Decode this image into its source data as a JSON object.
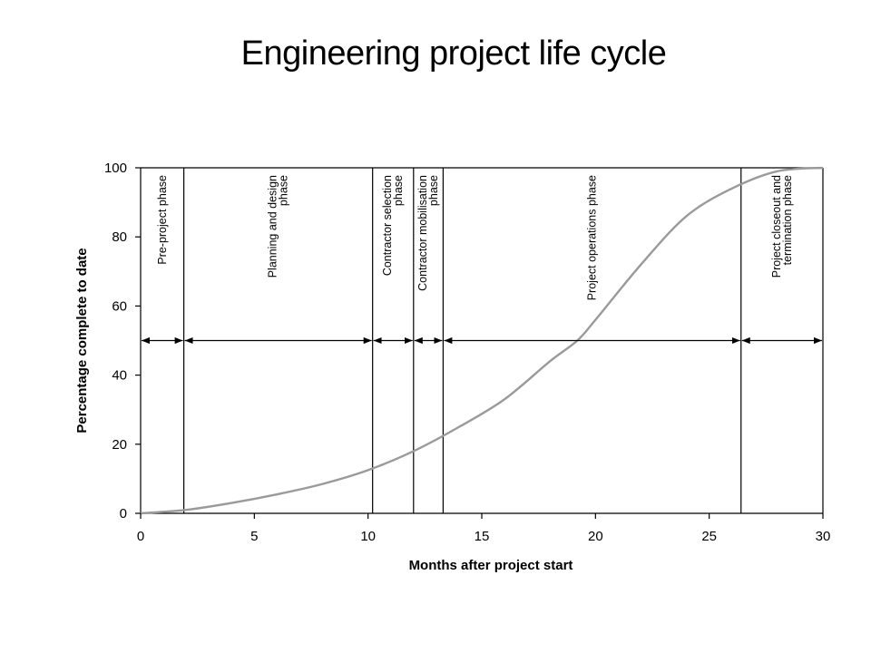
{
  "title": "Engineering project life cycle",
  "chart_data": {
    "type": "line",
    "title": "Engineering project life cycle",
    "xlabel": "Months after project start",
    "ylabel": "Percentage complete to date",
    "xlim": [
      0,
      30
    ],
    "ylim": [
      0,
      100
    ],
    "x_ticks": [
      0,
      5,
      10,
      15,
      20,
      25,
      30
    ],
    "y_ticks": [
      0,
      20,
      40,
      60,
      80,
      100
    ],
    "grid": false,
    "series": [
      {
        "name": "Percentage complete to date",
        "color": "#9a9a9a",
        "x": [
          0,
          2,
          4,
          6,
          8,
          10,
          12,
          14,
          16,
          18,
          19.2,
          20,
          22,
          24,
          26,
          28,
          30
        ],
        "y": [
          0,
          1,
          3,
          5.5,
          8.5,
          12.5,
          18,
          25,
          33,
          44,
          50,
          56,
          72,
          86,
          94,
          99,
          100
        ]
      }
    ],
    "phase_boundaries": [
      1.9,
      10.2,
      12.0,
      13.3,
      26.4
    ],
    "phases": [
      {
        "label_lines": [
          "Pre-project phase"
        ],
        "start": 0,
        "end": 1.9
      },
      {
        "label_lines": [
          "Planning and design",
          "phase"
        ],
        "start": 1.9,
        "end": 10.2
      },
      {
        "label_lines": [
          "Contractor selection",
          "phase"
        ],
        "start": 10.2,
        "end": 12.0
      },
      {
        "label_lines": [
          "Contractor mobilisation",
          "phase"
        ],
        "start": 12.0,
        "end": 13.3
      },
      {
        "label_lines": [
          "Project operations phase"
        ],
        "start": 13.3,
        "end": 26.4
      },
      {
        "label_lines": [
          "Project closeout and",
          "termination phase"
        ],
        "start": 26.4,
        "end": 30
      }
    ],
    "phase_arrow_level": 50
  }
}
